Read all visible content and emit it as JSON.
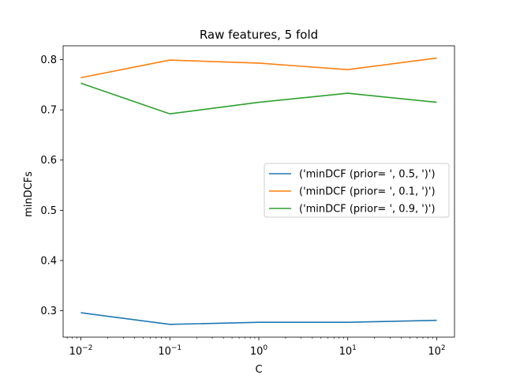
{
  "chart_data": {
    "type": "line",
    "title": "Raw features, 5 fold",
    "xlabel": "C",
    "ylabel": "minDCFs",
    "x_scale": "log",
    "x": [
      0.01,
      0.1,
      1,
      10,
      100
    ],
    "x_tick_values": [
      0.01,
      0.1,
      1,
      10,
      100
    ],
    "x_tick_labels": [
      {
        "base": "10",
        "exp": "−2"
      },
      {
        "base": "10",
        "exp": "−1"
      },
      {
        "base": "10",
        "exp": "0"
      },
      {
        "base": "10",
        "exp": "1"
      },
      {
        "base": "10",
        "exp": "2"
      }
    ],
    "y_tick_values": [
      0.3,
      0.4,
      0.5,
      0.6,
      0.7,
      0.8
    ],
    "y_tick_labels": [
      "0.3",
      "0.4",
      "0.5",
      "0.6",
      "0.7",
      "0.8"
    ],
    "ylim": [
      0.2475,
      0.8275
    ],
    "grid": false,
    "legend_position": "center-right",
    "series": [
      {
        "name": "('minDCF (prior= ', 0.5, ')')",
        "color": "#1f77b4",
        "values": [
          0.296,
          0.273,
          0.277,
          0.277,
          0.281
        ]
      },
      {
        "name": "('minDCF (prior= ', 0.1, ')')",
        "color": "#ff7f0e",
        "values": [
          0.764,
          0.799,
          0.793,
          0.78,
          0.803
        ]
      },
      {
        "name": "('minDCF (prior= ', 0.9, ')')",
        "color": "#2ca02c",
        "values": [
          0.753,
          0.692,
          0.715,
          0.733,
          0.715
        ]
      }
    ]
  }
}
